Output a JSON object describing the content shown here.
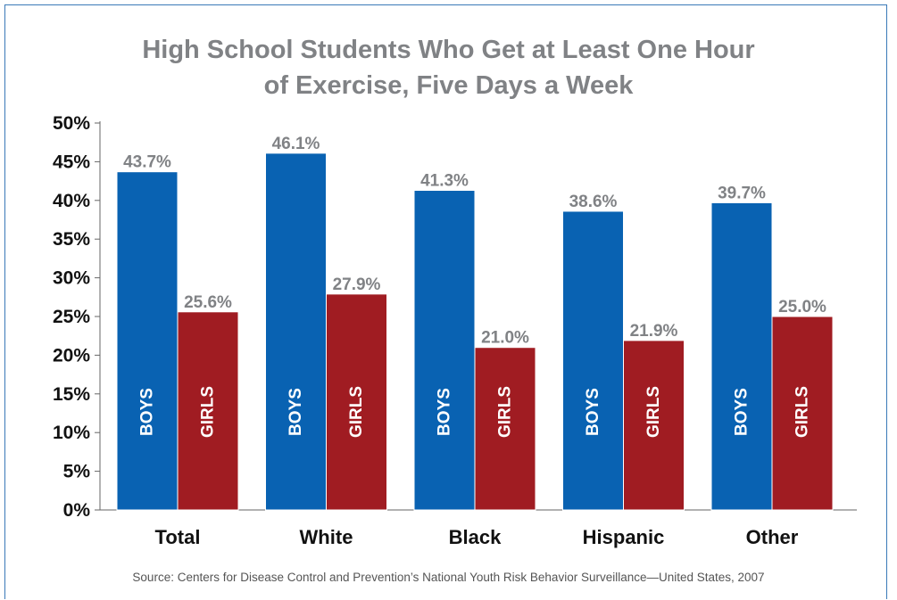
{
  "title_lines": [
    "High School Students Who Get at Least One Hour",
    "of Exercise, Five Days a Week"
  ],
  "source": "Source: Centers for Disease Control and Prevention’s National Youth Risk Behavior Surveillance—United States, 2007",
  "colors": {
    "boys": "#0962b2",
    "girls": "#a01c22",
    "frame": "#3a79b8",
    "title": "#808285"
  },
  "chart_data": {
    "type": "bar",
    "title": "High School Students Who Get at Least One Hour of Exercise, Five Days a Week",
    "categories": [
      "Total",
      "White",
      "Black",
      "Hispanic",
      "Other"
    ],
    "series": [
      {
        "name": "BOYS",
        "values": [
          43.7,
          46.1,
          41.3,
          38.6,
          39.7
        ],
        "labels": [
          "43.7%",
          "46.1%",
          "41.3%",
          "38.6%",
          "39.7%"
        ]
      },
      {
        "name": "GIRLS",
        "values": [
          25.6,
          27.9,
          21.0,
          21.9,
          25.0
        ],
        "labels": [
          "25.6%",
          "27.9%",
          "21.0%",
          "21.9%",
          "25.0%"
        ]
      }
    ],
    "yticks": [
      "0%",
      "5%",
      "10%",
      "15%",
      "20%",
      "25%",
      "30%",
      "35%",
      "40%",
      "45%",
      "50%"
    ],
    "ylim": [
      0,
      50
    ],
    "xlabel": "",
    "ylabel": "",
    "grid": false,
    "legend": "none"
  }
}
